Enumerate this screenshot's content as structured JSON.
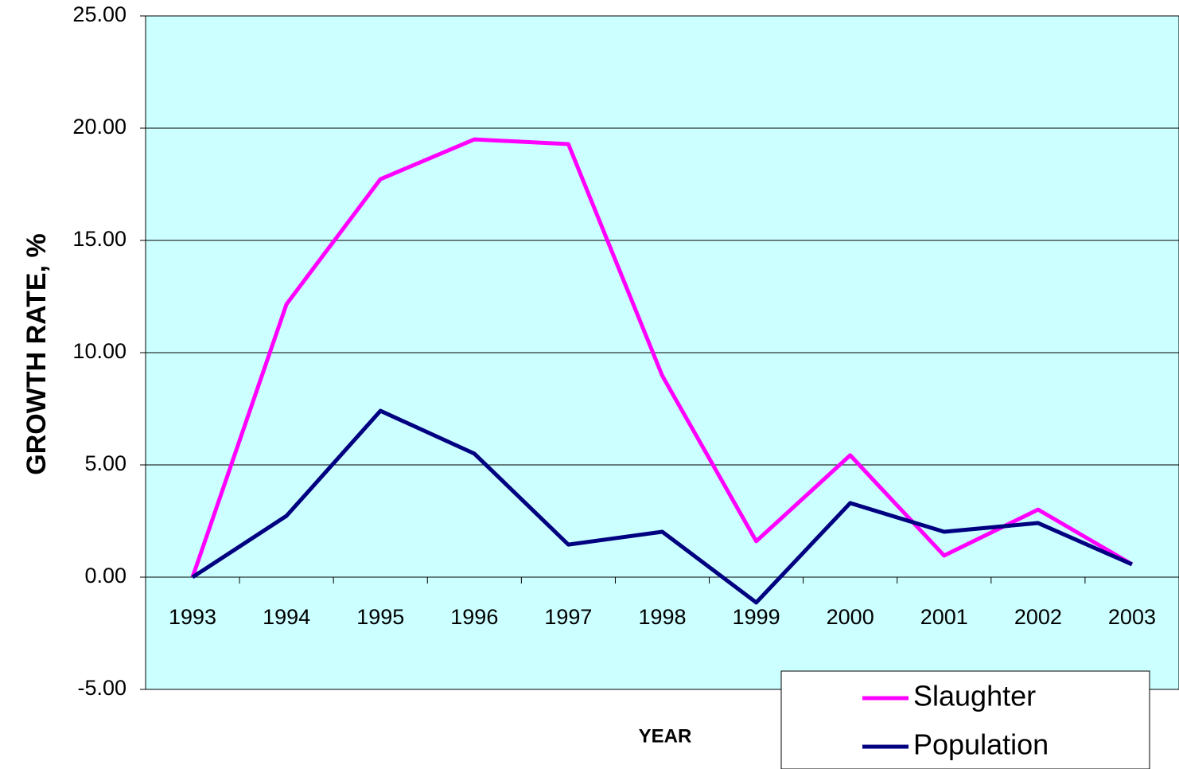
{
  "chart_data": {
    "type": "line",
    "ylabel": "GROWTH RATE, %",
    "xlabel": "YEAR",
    "categories": [
      "1993",
      "1994",
      "1995",
      "1996",
      "1997",
      "1998",
      "1999",
      "2000",
      "2001",
      "2002",
      "2003"
    ],
    "series": [
      {
        "name": "Slaughter",
        "color": "#ff00ff",
        "values": [
          0,
          12.16,
          17.73,
          19.5,
          19.29,
          8.97,
          1.6,
          5.43,
          0.96,
          3.01,
          0.57
        ]
      },
      {
        "name": "Population",
        "color": "#000080",
        "values": [
          0,
          2.73,
          7.41,
          5.5,
          1.45,
          2.02,
          -1.13,
          3.3,
          2.02,
          2.41,
          0.57
        ]
      }
    ],
    "ylim": [
      -5,
      25
    ],
    "yticks": [
      {
        "value": -5,
        "label": "-5.00"
      },
      {
        "value": 0,
        "label": "0.00"
      },
      {
        "value": 5,
        "label": "5.00"
      },
      {
        "value": 10,
        "label": "10.00"
      },
      {
        "value": 15,
        "label": "15.00"
      },
      {
        "value": 20,
        "label": "20.00"
      },
      {
        "value": 25,
        "label": "25.00"
      }
    ],
    "grid": true,
    "legend": "lower right"
  }
}
